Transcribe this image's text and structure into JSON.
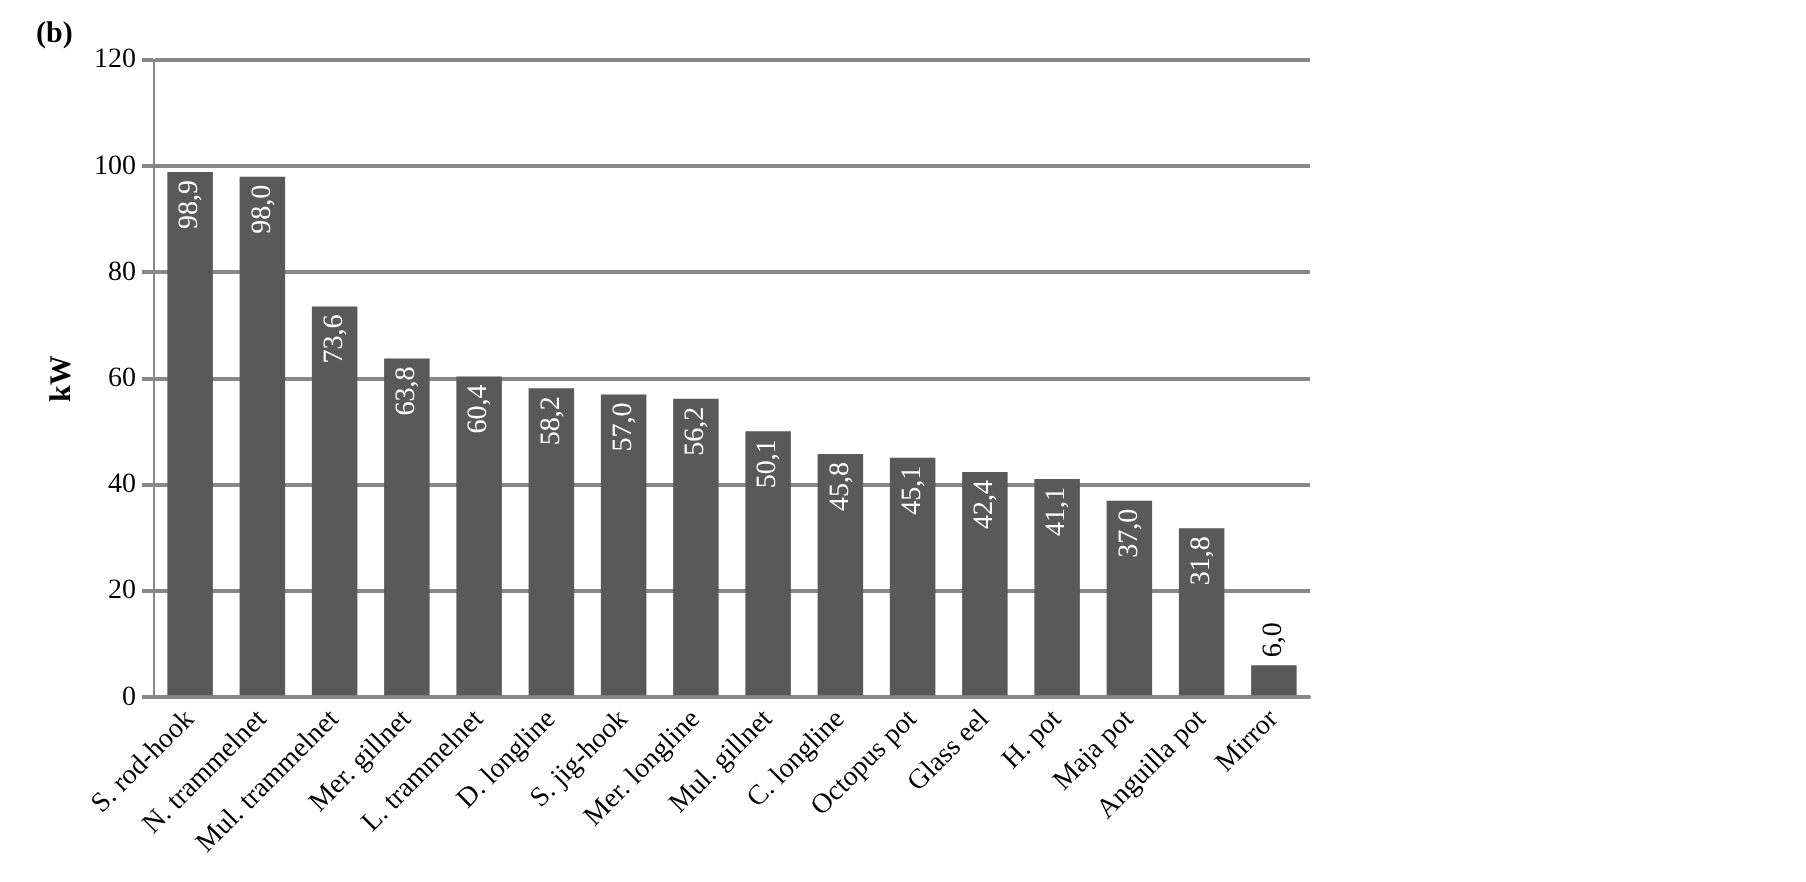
{
  "chart_data": {
    "type": "bar",
    "title": "(b)",
    "ylabel": "kW",
    "categories": [
      "S. rod-hook",
      "N. trammelnet",
      "Mul. trammelnet",
      "Mer. gillnet",
      "L. trammelnet",
      "D. longline",
      "S. jig-hook",
      "Mer. longline",
      "Mul. gillnet",
      "C. longline",
      "Octopus pot",
      "Glass eel",
      "H. pot",
      "Maja pot",
      "Anguilla pot",
      "Mirror"
    ],
    "values": [
      98.9,
      98.0,
      73.6,
      63.8,
      60.4,
      58.2,
      57.0,
      56.2,
      50.1,
      45.8,
      45.1,
      42.4,
      41.1,
      37.0,
      31.8,
      6.0
    ],
    "value_labels": [
      "98,9",
      "98,0",
      "73,6",
      "63,8",
      "60,4",
      "58,2",
      "57,0",
      "56,2",
      "50,1",
      "45,8",
      "45,1",
      "42,4",
      "41,1",
      "37,0",
      "31,8",
      "6,0"
    ],
    "color": "#595959",
    "ylim": [
      0,
      120
    ],
    "yticks": [
      0,
      20,
      40,
      60,
      80,
      100,
      120
    ],
    "grid": "y",
    "legend": false
  }
}
